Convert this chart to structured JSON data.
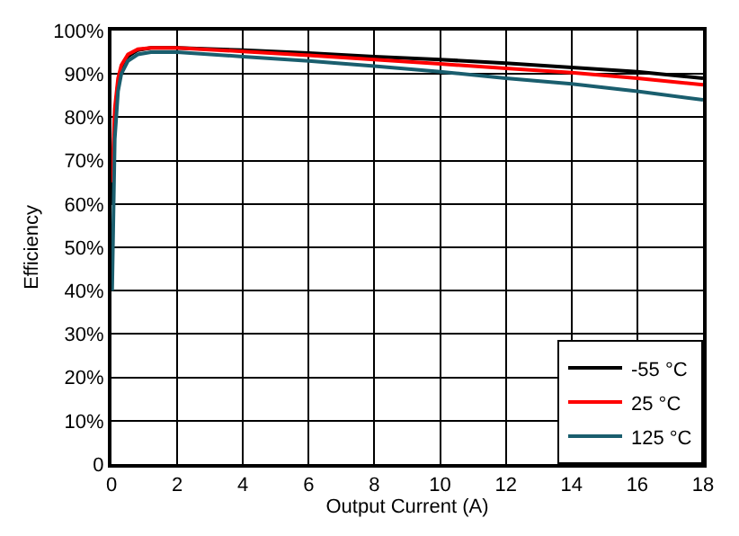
{
  "chart_data": {
    "type": "line",
    "xlabel": "Output Current (A)",
    "ylabel": "Efficiency",
    "x": [
      0.02,
      0.1,
      0.2,
      0.3,
      0.5,
      0.8,
      1.2,
      2,
      4,
      6,
      8,
      10,
      12,
      14,
      16,
      18
    ],
    "series": [
      {
        "name": "-55 °C",
        "color": "#000000",
        "values": [
          60,
          80,
          88,
          91,
          94,
          95.5,
          96,
          96,
          95.5,
          94.8,
          94,
          93.3,
          92.5,
          91.5,
          90.5,
          89
        ]
      },
      {
        "name": "25 °C",
        "color": "#ff0000",
        "values": [
          65,
          82,
          89,
          92,
          94.5,
          95.7,
          96,
          96,
          95.2,
          94.3,
          93.3,
          92.3,
          91.3,
          90.3,
          89,
          87.5
        ]
      },
      {
        "name": "125 °C",
        "color": "#1a5e6e",
        "values": [
          40,
          75,
          86,
          90,
          93,
          94.5,
          95,
          95,
          94,
          93,
          91.8,
          90.5,
          89,
          87.7,
          86,
          84
        ]
      }
    ],
    "xlim": [
      0,
      18
    ],
    "xticks": [
      0,
      2,
      4,
      6,
      8,
      10,
      12,
      14,
      16,
      18
    ],
    "ylim": [
      0,
      100
    ],
    "yticks": [
      {
        "value": 0,
        "label": "0"
      },
      {
        "value": 10,
        "label": "10%"
      },
      {
        "value": 20,
        "label": "20%"
      },
      {
        "value": 30,
        "label": "30%"
      },
      {
        "value": 40,
        "label": "40%"
      },
      {
        "value": 50,
        "label": "50%"
      },
      {
        "value": 60,
        "label": "60%"
      },
      {
        "value": 70,
        "label": "70%"
      },
      {
        "value": 80,
        "label": "80%"
      },
      {
        "value": 90,
        "label": "90%"
      },
      {
        "value": 100,
        "label": "100%"
      }
    ],
    "grid": true,
    "legend": "bottom right",
    "marker": "none",
    "line_style": "solid"
  }
}
